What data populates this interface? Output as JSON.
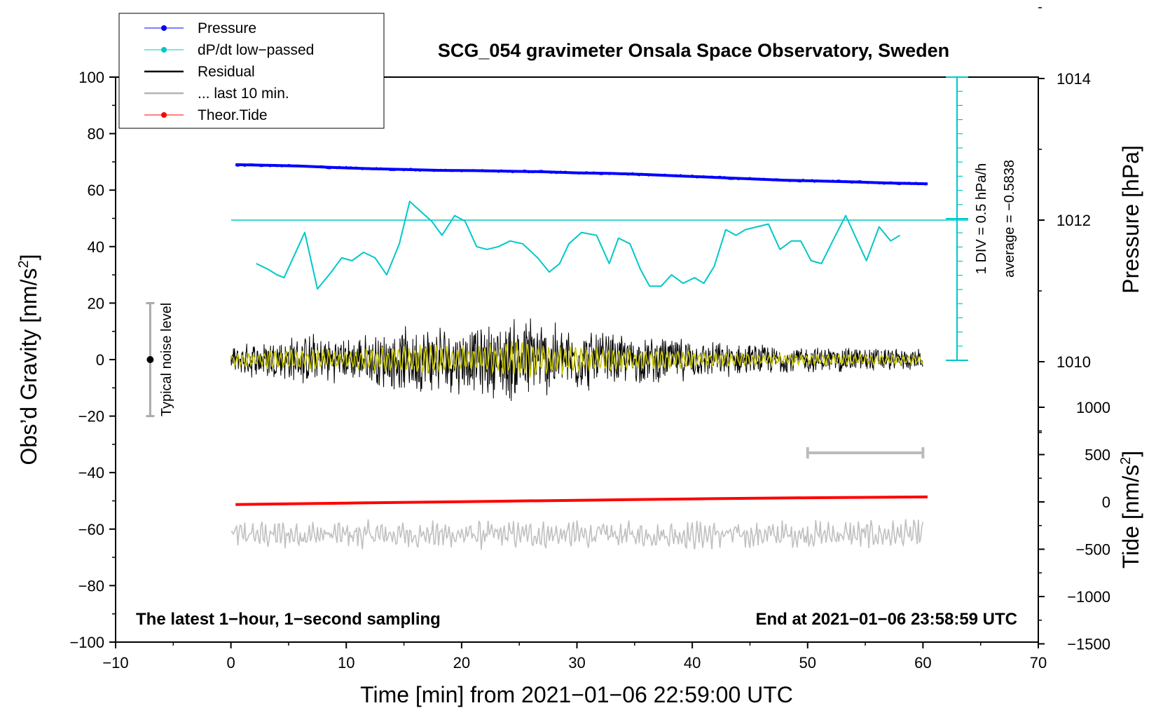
{
  "chart_data": {
    "type": "line",
    "title": "SCG_054 gravimeter Onsala Space Observatory, Sweden",
    "xlabel": "Time [min] from 2021−01−06 22:59:00 UTC",
    "ylabel_main": "Obs’d Gravity [nm/s",
    "ylabel_pressure": "Pressure [hPa]",
    "ylabel_tide": "Tide [nm/s",
    "superscript_2": "2",
    "ylabel_close": "]",
    "xlim": [
      -10,
      70
    ],
    "ylim": [
      -100,
      100
    ],
    "x_ticks": [
      -10,
      0,
      10,
      20,
      30,
      40,
      50,
      60,
      70
    ],
    "x_tick_labels": [
      "−10",
      "0",
      "10",
      "20",
      "30",
      "40",
      "50",
      "60",
      "70"
    ],
    "y_ticks": [
      100,
      80,
      60,
      40,
      20,
      0,
      -20,
      -40,
      -60,
      -80,
      -100
    ],
    "y_tick_labels": [
      "100",
      "80",
      "60",
      "40",
      "20",
      "0",
      "−20",
      "−40",
      "−60",
      "−80",
      "−100"
    ],
    "pressure_ticks": [
      1014,
      1012,
      1010
    ],
    "pressure_tick_labels": [
      "1014",
      "1012",
      "1010"
    ],
    "tide_ticks": [
      1000,
      500,
      0,
      -500,
      -1000,
      -1500
    ],
    "tide_tick_labels": [
      "1000",
      "500",
      "0",
      "−500",
      "−1000",
      "−1500"
    ],
    "legend": {
      "position": "top-left",
      "entries": [
        {
          "label": "Pressure",
          "color": "#0000ff",
          "marker": true
        },
        {
          "label": "dP/dt low−passed",
          "color": "#00c8c8",
          "marker": true
        },
        {
          "label": "Residual",
          "color": "#000000",
          "marker": false
        },
        {
          "label": "... last 10 min.",
          "color": "#b4b4b4",
          "marker": false
        },
        {
          "label": "Theor.Tide",
          "color": "#ff0000",
          "marker": true
        }
      ]
    },
    "annotations": {
      "noise_label": "Typical noise level",
      "div_label": "1 DIV = 0.5 hPa/h",
      "average_label": "average = −0.5838",
      "bottom_left": "The latest 1−hour, 1−second sampling",
      "bottom_right": "End at 2021−01−06 23:58:59 UTC"
    },
    "noise_level": {
      "x": -7,
      "y_range": [
        -20,
        20
      ]
    },
    "last10_marker": {
      "x_range": [
        50,
        60
      ],
      "y": -33
    },
    "series": [
      {
        "name": "Pressure",
        "color": "#0000ff",
        "x": [
          0.4,
          3,
          6,
          9,
          12,
          15,
          18,
          21,
          24,
          27,
          30,
          33,
          36,
          39,
          42,
          45,
          48,
          51,
          54,
          57,
          60.4
        ],
        "y": [
          69,
          68.8,
          68.5,
          68,
          67.6,
          67.3,
          67,
          66.9,
          66.7,
          66.5,
          66.1,
          65.9,
          65.5,
          65.0,
          64.5,
          64.0,
          63.5,
          63.2,
          62.9,
          62.5,
          62.2
        ]
      },
      {
        "name": "dP/dt low−passed",
        "color": "#00c8c8",
        "x": [
          2.2,
          3.2,
          4,
          4.6,
          5.5,
          6.4,
          7.5,
          8.7,
          9.6,
          10.5,
          11.5,
          12.5,
          13.5,
          14.6,
          15.5,
          16.3,
          17.4,
          18.3,
          19.4,
          20.3,
          21.3,
          22.2,
          23.2,
          24.2,
          25.3,
          26.6,
          27.6,
          28.5,
          29.3,
          30.4,
          31.7,
          32.8,
          33.6,
          34.6,
          35.5,
          36.3,
          37.3,
          38.2,
          39.2,
          40.2,
          41.0,
          41.9,
          42.9,
          43.8,
          44.6,
          45.6,
          46.6,
          47.6,
          48.6,
          49.4,
          50.3,
          51.2,
          52.3,
          53.3,
          54.2,
          55.1,
          56.2,
          57.2,
          58.0
        ],
        "y": [
          34,
          32,
          30,
          29,
          37,
          45,
          25,
          31,
          36,
          35,
          38,
          36,
          30,
          41,
          56,
          53,
          49,
          44,
          51,
          49,
          40,
          39,
          40,
          42,
          41,
          36,
          31,
          34,
          41,
          45,
          44,
          34,
          43,
          41,
          32,
          26,
          26,
          30,
          27,
          29,
          27,
          33,
          46,
          44,
          46,
          47,
          48,
          39,
          42,
          42,
          35,
          34,
          43,
          51,
          43,
          35,
          47,
          42,
          44
        ]
      },
      {
        "name": "Theor.Tide",
        "color": "#ff0000",
        "x": [
          0.4,
          10,
          20,
          30,
          40,
          50,
          60.4
        ],
        "y": [
          -51.3,
          -50.8,
          -50.3,
          -49.8,
          -49.3,
          -48.9,
          -48.6
        ]
      }
    ],
    "residual_envelope": {
      "color": "#000000",
      "filtered_color": "#c8c800",
      "x_range": [
        0,
        60
      ],
      "amplitude": [
        [
          0,
          5
        ],
        [
          3,
          8
        ],
        [
          7,
          10
        ],
        [
          10,
          8
        ],
        [
          13,
          11
        ],
        [
          15,
          12
        ],
        [
          18,
          14
        ],
        [
          21,
          12
        ],
        [
          24,
          16
        ],
        [
          25.5,
          18
        ],
        [
          28,
          14
        ],
        [
          32,
          11
        ],
        [
          35,
          9
        ],
        [
          38,
          9
        ],
        [
          41,
          7
        ],
        [
          45,
          6
        ],
        [
          50,
          5
        ],
        [
          55,
          5
        ],
        [
          60,
          4
        ]
      ]
    },
    "last10_trace": {
      "color": "#c0c0c0",
      "x_range": [
        0,
        60
      ],
      "baseline": -62,
      "amplitude": 4
    }
  }
}
